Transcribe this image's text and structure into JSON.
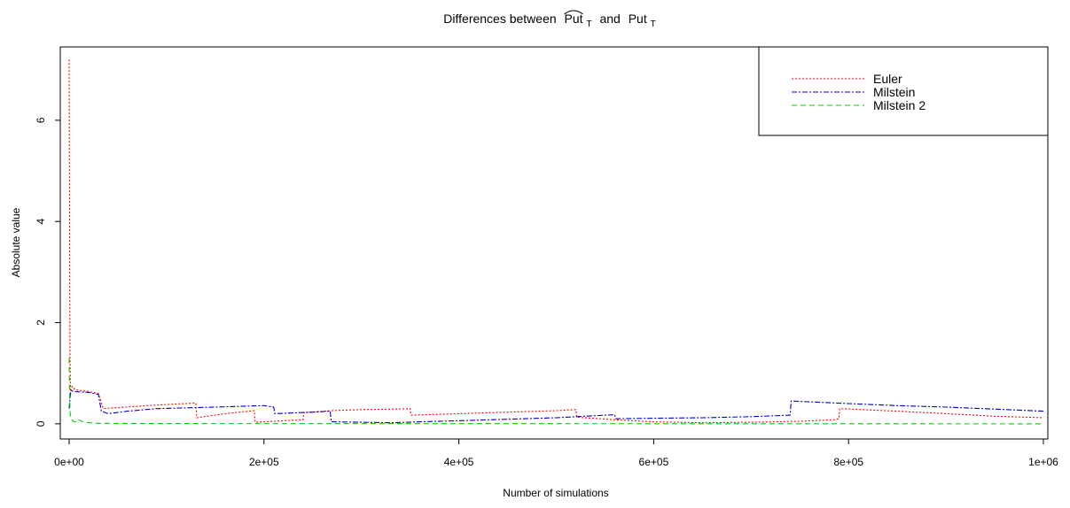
{
  "chart_data": {
    "type": "line",
    "title_main": "Differences between",
    "title_term1": "Put",
    "title_term1_sub": "T",
    "title_and": "and",
    "title_term2": "Put",
    "title_term2_sub": "T",
    "xlabel": "Number of simulations",
    "ylabel": "Absolute value",
    "xlim": [
      0,
      1000000
    ],
    "ylim": [
      -0.3,
      7.45
    ],
    "x_ticks": [
      0,
      200000,
      400000,
      600000,
      800000,
      1000000
    ],
    "x_tick_labels": [
      "0e+00",
      "2e+05",
      "4e+05",
      "6e+05",
      "8e+05",
      "1e+06"
    ],
    "y_ticks": [
      0,
      2,
      4,
      6
    ],
    "y_tick_labels": [
      "0",
      "2",
      "4",
      "6"
    ],
    "legend_position": "top-right",
    "grid": false,
    "series": [
      {
        "name": "Euler",
        "color": "#ff0000",
        "dash": "2,2",
        "x": [
          0,
          800,
          1500,
          3000,
          6000,
          10000,
          20000,
          30000,
          35000,
          50000,
          80000,
          100000,
          130000,
          131000,
          160000,
          190000,
          191000,
          240000,
          241000,
          270000,
          300000,
          330000,
          350000,
          351000,
          400000,
          450000,
          500000,
          520000,
          521000,
          560000,
          600000,
          650000,
          700000,
          750000,
          785000,
          790000,
          791000,
          850000,
          900000,
          950000,
          1000000
        ],
        "y": [
          7.2,
          1.4,
          0.6,
          0.74,
          0.68,
          0.66,
          0.64,
          0.6,
          0.3,
          0.32,
          0.36,
          0.38,
          0.41,
          0.12,
          0.2,
          0.26,
          0.03,
          0.08,
          0.22,
          0.26,
          0.28,
          0.29,
          0.3,
          0.17,
          0.2,
          0.23,
          0.26,
          0.28,
          0.13,
          0.08,
          0.04,
          0.02,
          0.03,
          0.05,
          0.08,
          0.1,
          0.3,
          0.25,
          0.2,
          0.15,
          0.12
        ]
      },
      {
        "name": "Milstein",
        "color": "#0000cd",
        "dash": "6,2,2,2",
        "x": [
          0,
          800,
          1500,
          3000,
          6000,
          10000,
          20000,
          30000,
          33000,
          40000,
          60000,
          90000,
          130000,
          200000,
          210000,
          211000,
          250000,
          268000,
          269000,
          300000,
          330000,
          360000,
          400000,
          450000,
          500000,
          560000,
          561000,
          600000,
          650000,
          700000,
          740000,
          741000,
          800000,
          850000,
          900000,
          950000,
          1000000
        ],
        "y": [
          0.3,
          0.5,
          0.62,
          0.65,
          0.64,
          0.63,
          0.62,
          0.58,
          0.25,
          0.2,
          0.25,
          0.3,
          0.32,
          0.36,
          0.33,
          0.2,
          0.23,
          0.25,
          0.04,
          0.03,
          0.02,
          0.04,
          0.06,
          0.09,
          0.12,
          0.18,
          0.1,
          0.11,
          0.12,
          0.14,
          0.17,
          0.45,
          0.4,
          0.36,
          0.33,
          0.29,
          0.25
        ]
      },
      {
        "name": "Milstein 2",
        "color": "#00cd00",
        "dash": "6,4",
        "x": [
          0,
          500,
          1000,
          2000,
          4000,
          8000,
          10000,
          15000,
          30000,
          100000,
          1000000
        ],
        "y": [
          1.3,
          0.6,
          0.2,
          0.1,
          0.05,
          0.03,
          0.08,
          0.03,
          0.01,
          0.005,
          0.0
        ]
      }
    ]
  }
}
